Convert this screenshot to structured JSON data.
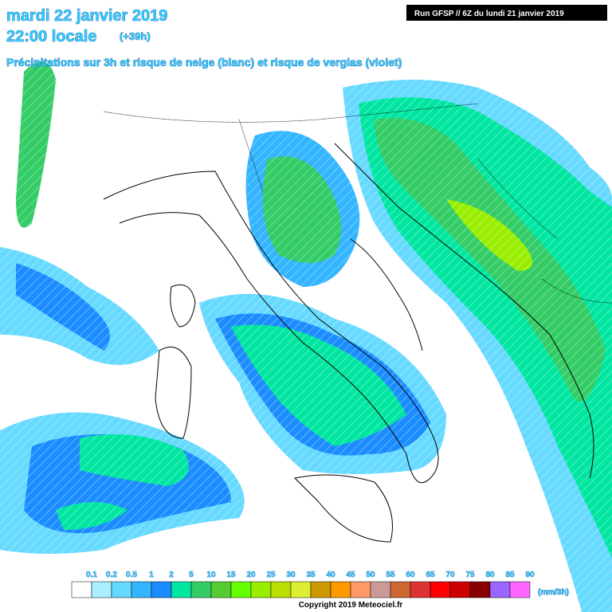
{
  "header": {
    "line1": "mardi 22 janvier 2019",
    "line2": "22:00 locale",
    "line2_suffix": "(+39h)",
    "subtitle": "Précipitations sur 3h et risque de neige (blanc) et risque de verglas (violet)"
  },
  "run_label": "Run GFSP // 6Z du lundi 21 janvier 2019",
  "legend": {
    "labels": [
      "0.1",
      "0.2",
      "0.5",
      "1",
      "2",
      "5",
      "10",
      "15",
      "20",
      "25",
      "30",
      "35",
      "40",
      "45",
      "50",
      "55",
      "60",
      "65",
      "70",
      "75",
      "80",
      "85",
      "90"
    ],
    "colors": [
      "#ffffff",
      "#aaeeff",
      "#66d9ff",
      "#33b5ff",
      "#1a8cff",
      "#00e6a0",
      "#33cc66",
      "#55cc33",
      "#66ff00",
      "#99ee00",
      "#bbdd00",
      "#ddee33",
      "#cc9900",
      "#ff9900",
      "#ff9966",
      "#cc9999",
      "#cc6633",
      "#dd3333",
      "#ff0000",
      "#cc0000",
      "#880000",
      "#9966ff",
      "#ff66ff"
    ],
    "unit": "(mm/3h)"
  },
  "copyright": "Copyright 2019 Meteociel.fr"
}
